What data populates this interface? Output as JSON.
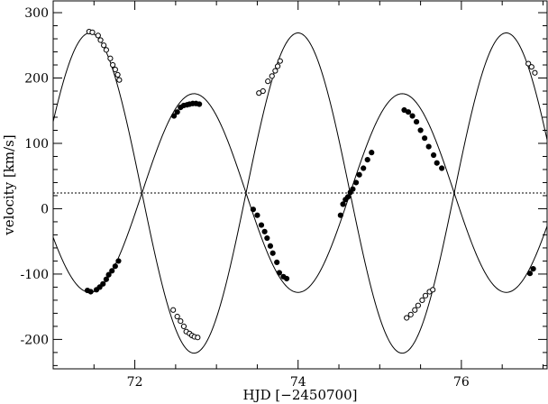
{
  "chart_data": {
    "type": "scatter",
    "xlabel": "HJD [−2450700]",
    "ylabel": "velocity [km/s]",
    "xlim": [
      71.0,
      77.05
    ],
    "ylim": [
      -245,
      318
    ],
    "xticks": [
      72,
      74,
      76
    ],
    "yticks": [
      -200,
      -100,
      0,
      100,
      200,
      300
    ],
    "systemic_velocity": 24,
    "series": [
      {
        "marker": "open-circle",
        "points": [
          [
            71.44,
            271
          ],
          [
            71.48,
            270
          ],
          [
            71.55,
            265
          ],
          [
            71.58,
            258
          ],
          [
            71.62,
            250
          ],
          [
            71.65,
            243
          ],
          [
            71.7,
            230
          ],
          [
            71.73,
            220
          ],
          [
            71.76,
            213
          ],
          [
            71.79,
            205
          ],
          [
            71.81,
            197
          ],
          [
            72.47,
            -155
          ],
          [
            72.52,
            -165
          ],
          [
            72.56,
            -172
          ],
          [
            72.6,
            -180
          ],
          [
            72.63,
            -188
          ],
          [
            72.67,
            -191
          ],
          [
            72.7,
            -194
          ],
          [
            72.73,
            -196
          ],
          [
            72.77,
            -197
          ],
          [
            73.52,
            177
          ],
          [
            73.57,
            180
          ],
          [
            73.63,
            195
          ],
          [
            73.68,
            203
          ],
          [
            73.72,
            211
          ],
          [
            73.75,
            218
          ],
          [
            73.78,
            226
          ],
          [
            75.33,
            -167
          ],
          [
            75.38,
            -162
          ],
          [
            75.43,
            -155
          ],
          [
            75.47,
            -148
          ],
          [
            75.52,
            -140
          ],
          [
            75.56,
            -133
          ],
          [
            75.61,
            -127
          ],
          [
            75.65,
            -124
          ],
          [
            76.82,
            222
          ],
          [
            76.86,
            217
          ],
          [
            76.9,
            208
          ]
        ]
      },
      {
        "marker": "filled-circle",
        "points": [
          [
            71.42,
            -125
          ],
          [
            71.46,
            -127
          ],
          [
            71.53,
            -124
          ],
          [
            71.57,
            -120
          ],
          [
            71.61,
            -115
          ],
          [
            71.65,
            -108
          ],
          [
            71.68,
            -101
          ],
          [
            71.72,
            -95
          ],
          [
            71.76,
            -88
          ],
          [
            71.8,
            -80
          ],
          [
            72.48,
            142
          ],
          [
            72.52,
            148
          ],
          [
            72.56,
            155
          ],
          [
            72.6,
            158
          ],
          [
            72.64,
            159
          ],
          [
            72.67,
            160
          ],
          [
            72.71,
            161
          ],
          [
            72.75,
            161
          ],
          [
            72.79,
            160
          ],
          [
            73.45,
            -1
          ],
          [
            73.5,
            -10
          ],
          [
            73.55,
            -25
          ],
          [
            73.59,
            -35
          ],
          [
            73.62,
            -45
          ],
          [
            73.66,
            -57
          ],
          [
            73.69,
            -68
          ],
          [
            73.74,
            -82
          ],
          [
            73.77,
            -98
          ],
          [
            73.82,
            -104
          ],
          [
            73.86,
            -107
          ],
          [
            74.52,
            -10
          ],
          [
            74.55,
            7
          ],
          [
            74.58,
            14
          ],
          [
            74.61,
            18
          ],
          [
            74.64,
            25
          ],
          [
            74.67,
            30
          ],
          [
            74.71,
            40
          ],
          [
            74.75,
            52
          ],
          [
            74.8,
            62
          ],
          [
            74.85,
            75
          ],
          [
            74.9,
            86
          ],
          [
            75.3,
            151
          ],
          [
            75.35,
            148
          ],
          [
            75.4,
            142
          ],
          [
            75.45,
            133
          ],
          [
            75.5,
            120
          ],
          [
            75.55,
            108
          ],
          [
            75.6,
            95
          ],
          [
            75.66,
            82
          ],
          [
            75.7,
            70
          ],
          [
            75.76,
            62
          ],
          [
            76.84,
            -99
          ],
          [
            76.88,
            -92
          ]
        ]
      }
    ]
  }
}
